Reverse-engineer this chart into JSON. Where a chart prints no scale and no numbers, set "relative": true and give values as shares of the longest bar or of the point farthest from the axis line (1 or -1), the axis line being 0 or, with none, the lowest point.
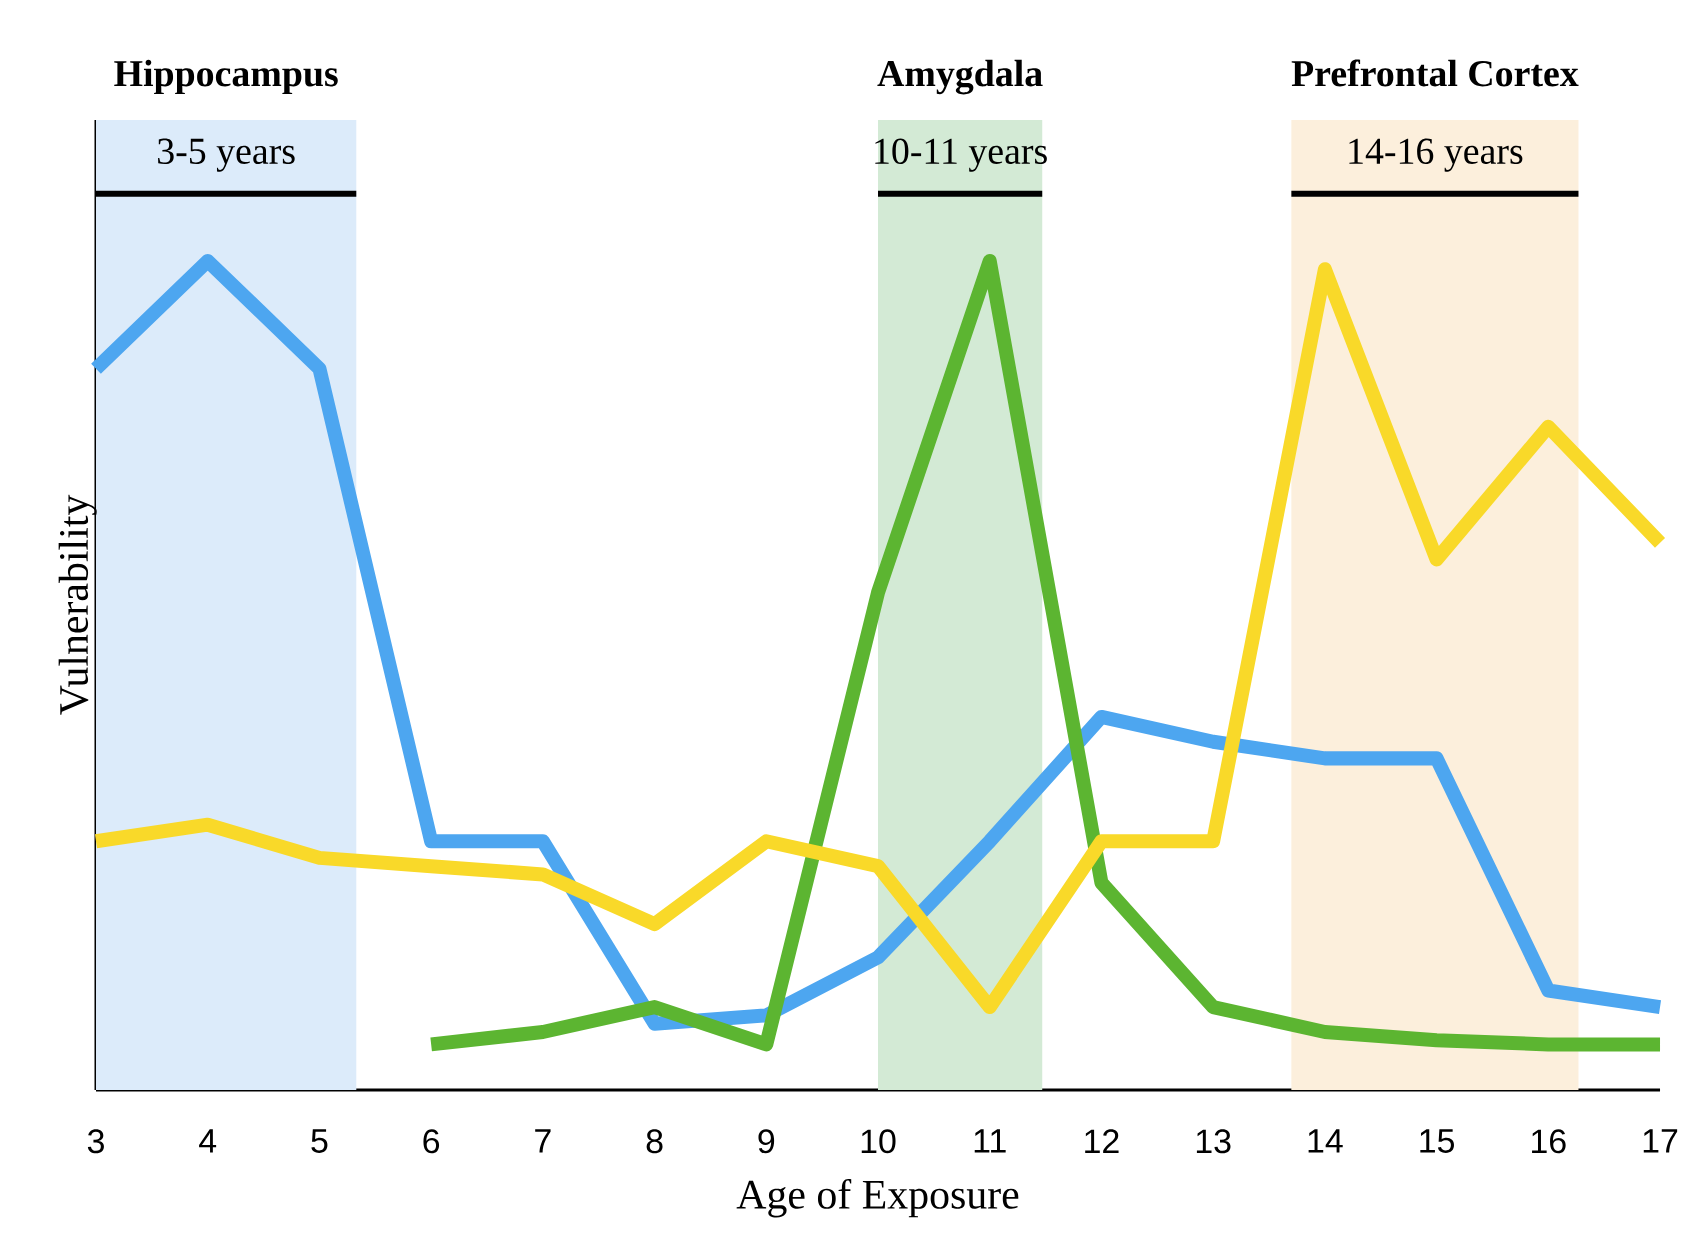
{
  "chart_data": {
    "type": "line",
    "relative": true,
    "xlabel": "Age of Exposure",
    "ylabel": "Vulnerability",
    "x": [
      3,
      4,
      5,
      6,
      7,
      8,
      9,
      10,
      11,
      12,
      13,
      14,
      15,
      16,
      17
    ],
    "xlim": [
      3,
      17
    ],
    "xticks": [
      3,
      4,
      5,
      6,
      7,
      8,
      9,
      10,
      11,
      12,
      13,
      14,
      15,
      16,
      17
    ],
    "line_style": "solid",
    "marker": "none",
    "grid": false,
    "series": [
      {
        "color": "#4da6f0",
        "values": [
          0.87,
          1.0,
          0.87,
          0.3,
          0.3,
          0.08,
          0.09,
          0.16,
          0.3,
          0.45,
          0.42,
          0.4,
          0.4,
          0.12,
          0.1
        ]
      },
      {
        "color": "#5cb531",
        "values": [
          null,
          null,
          null,
          0.055,
          0.07,
          0.1,
          0.055,
          0.6,
          1.0,
          0.25,
          0.1,
          0.07,
          0.06,
          0.055,
          0.055
        ]
      },
      {
        "color": "#f9d929",
        "values": [
          0.3,
          0.32,
          0.28,
          0.27,
          0.26,
          0.2,
          0.3,
          0.27,
          0.1,
          0.3,
          0.3,
          0.99,
          0.64,
          0.8,
          0.66
        ]
      }
    ],
    "bands": [
      {
        "axis": "x",
        "from": 3,
        "to": 5.33,
        "label": "3-5 years",
        "color": "#dcebfa"
      },
      {
        "axis": "x",
        "from": 10,
        "to": 11.47,
        "label": "10-11 years",
        "color": "#d3ead5"
      },
      {
        "axis": "x",
        "from": 13.7,
        "to": 16.27,
        "label": "14-16 years",
        "color": "#fcefdc"
      }
    ],
    "annotations": [
      "Hippocampus",
      "Amygdala",
      "Prefrontal Cortex"
    ]
  }
}
